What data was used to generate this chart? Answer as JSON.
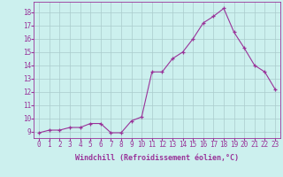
{
  "x": [
    0,
    1,
    2,
    3,
    4,
    5,
    6,
    7,
    8,
    9,
    10,
    11,
    12,
    13,
    14,
    15,
    16,
    17,
    18,
    19,
    20,
    21,
    22,
    23
  ],
  "y": [
    8.9,
    9.1,
    9.1,
    9.3,
    9.3,
    9.6,
    9.6,
    8.9,
    8.9,
    9.8,
    10.1,
    13.5,
    13.5,
    14.5,
    15.0,
    16.0,
    17.2,
    17.7,
    18.3,
    16.5,
    15.3,
    14.0,
    13.5,
    12.2
  ],
  "line_color": "#993399",
  "bg_color": "#ccf0ee",
  "grid_color": "#aacccc",
  "xlabel": "Windchill (Refroidissement éolien,°C)",
  "xlim": [
    -0.5,
    23.5
  ],
  "ylim": [
    8.5,
    18.8
  ],
  "yticks": [
    9,
    10,
    11,
    12,
    13,
    14,
    15,
    16,
    17,
    18
  ],
  "xticks": [
    0,
    1,
    2,
    3,
    4,
    5,
    6,
    7,
    8,
    9,
    10,
    11,
    12,
    13,
    14,
    15,
    16,
    17,
    18,
    19,
    20,
    21,
    22,
    23
  ],
  "marker": "+",
  "markersize": 3.5,
  "linewidth": 0.8,
  "tick_fontsize": 5.5,
  "xlabel_fontsize": 6.0
}
